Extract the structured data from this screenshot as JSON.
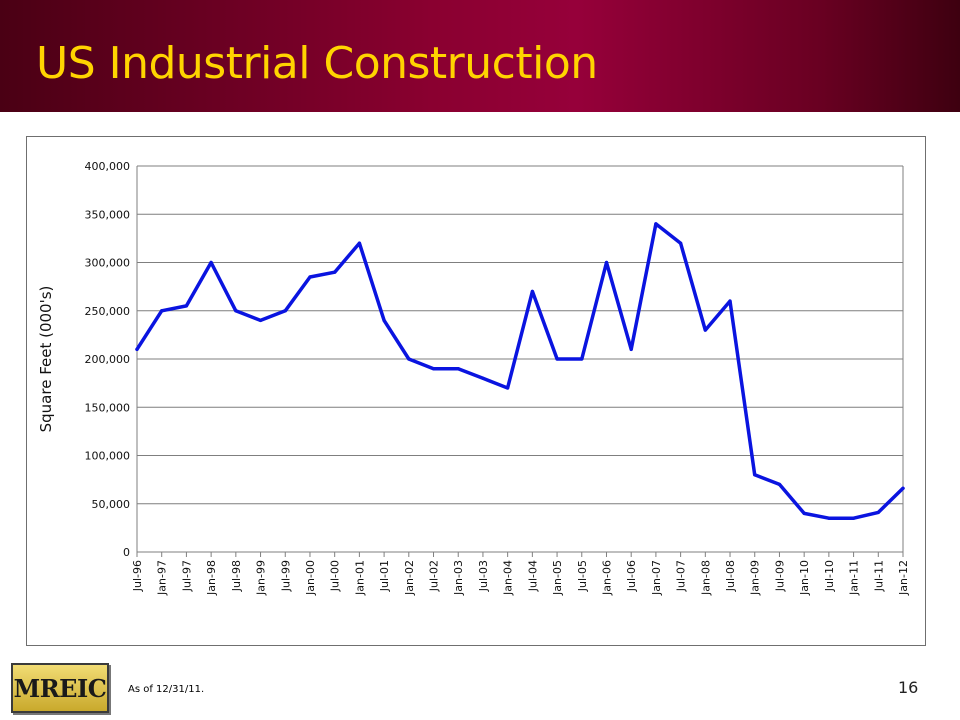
{
  "slide": {
    "title": "US Industrial Construction",
    "footnote": "As of 12/31/11.",
    "page_number": "16",
    "logo_text": "MREIC",
    "colors": {
      "title_bar_left": "#4a0014",
      "title_bar_mid": "#96003a",
      "title_text": "#ffd400",
      "line": "#0a14e0",
      "grid": "#7f7f7f",
      "logo_gold": "#e3c652"
    }
  },
  "chart_data": {
    "type": "line",
    "title": "",
    "xlabel": "",
    "ylabel": "Square Feet (000's)",
    "ylim": [
      0,
      400000
    ],
    "y_ticks": [
      "0",
      "50,000",
      "100,000",
      "150,000",
      "200,000",
      "250,000",
      "300,000",
      "350,000",
      "400,000"
    ],
    "y_tick_values": [
      0,
      50000,
      100000,
      150000,
      200000,
      250000,
      300000,
      350000,
      400000
    ],
    "grid": true,
    "legend": "none",
    "categories": [
      "Jul-96",
      "Jan-97",
      "Jul-97",
      "Jan-98",
      "Jul-98",
      "Jan-99",
      "Jul-99",
      "Jan-00",
      "Jul-00",
      "Jan-01",
      "Jul-01",
      "Jan-02",
      "Jul-02",
      "Jan-03",
      "Jul-03",
      "Jan-04",
      "Jul-04",
      "Jan-05",
      "Jul-05",
      "Jan-06",
      "Jul-06",
      "Jan-07",
      "Jul-07",
      "Jan-08",
      "Jul-08",
      "Jan-09",
      "Jul-09",
      "Jan-10",
      "Jul-10",
      "Jan-11",
      "Jul-11",
      "Jan-12"
    ],
    "series": [
      {
        "values": [
          210000,
          250000,
          255000,
          300000,
          250000,
          240000,
          250000,
          285000,
          290000,
          320000,
          240000,
          200000,
          190000,
          190000,
          180000,
          170000,
          270000,
          200000,
          200000,
          300000,
          210000,
          340000,
          320000,
          230000,
          260000,
          80000,
          70000,
          40000,
          35000,
          35000,
          41000,
          66000
        ],
        "color": "#0a14e0"
      }
    ]
  }
}
